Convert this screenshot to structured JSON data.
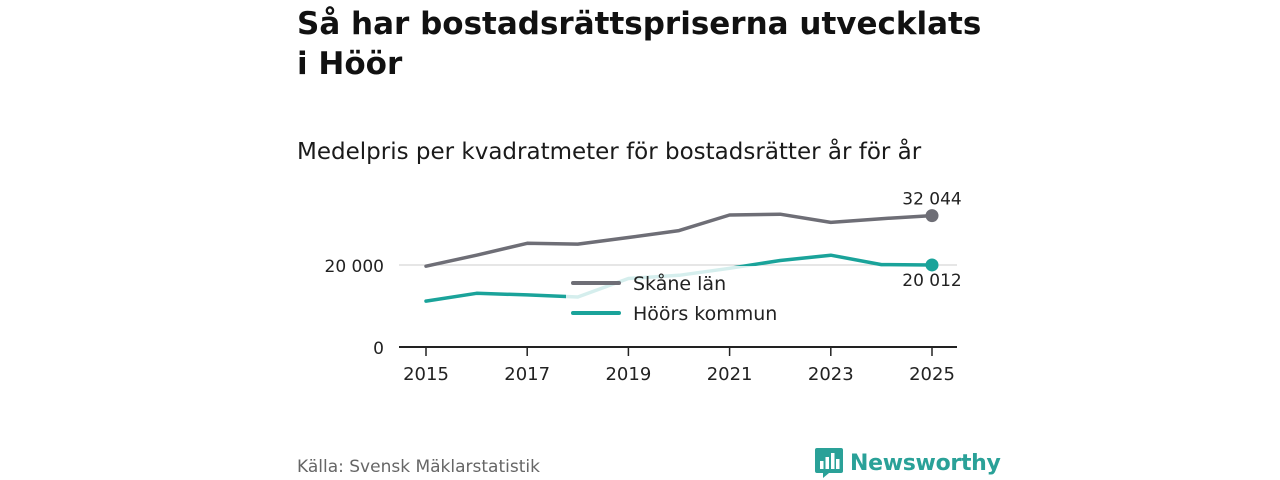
{
  "title": "Så har bostadsrättspriserna utvecklats i Höör",
  "subtitle": "Medelpris per kvadratmeter för bostadsrätter år för år",
  "source": "Källa: Svensk Mäklarstatistik",
  "brand": "Newsworthy",
  "colors": {
    "skane": "#6e6e76",
    "hoor": "#1aa39a",
    "axis": "#222222",
    "grid": "#d6d6d6"
  },
  "chart_data": {
    "type": "line",
    "title": "Medelpris per kvadratmeter för bostadsrätter år för år",
    "xlabel": "",
    "ylabel": "",
    "x": [
      2015,
      2016,
      2017,
      2018,
      2019,
      2020,
      2021,
      2022,
      2023,
      2024,
      2025
    ],
    "xticks": [
      2015,
      2017,
      2019,
      2021,
      2023,
      2025
    ],
    "xtick_labels": [
      "2015",
      "2017",
      "2019",
      "2021",
      "2023",
      "2025"
    ],
    "yticks": [
      0,
      20000
    ],
    "ytick_labels": [
      "0",
      "20 000"
    ],
    "ylim": [
      0,
      34000
    ],
    "legend_position": "center",
    "series": [
      {
        "name": "Skåne län",
        "key": "skane",
        "values": [
          19700,
          22400,
          25300,
          25100,
          26700,
          28400,
          32200,
          32400,
          30400,
          31300,
          32044
        ],
        "end_label": "32 044"
      },
      {
        "name": "Höörs kommun",
        "key": "hoor",
        "values": [
          11200,
          13100,
          12700,
          12200,
          16700,
          17500,
          19200,
          21100,
          22400,
          20100,
          20012
        ],
        "end_label": "20 012"
      }
    ]
  }
}
